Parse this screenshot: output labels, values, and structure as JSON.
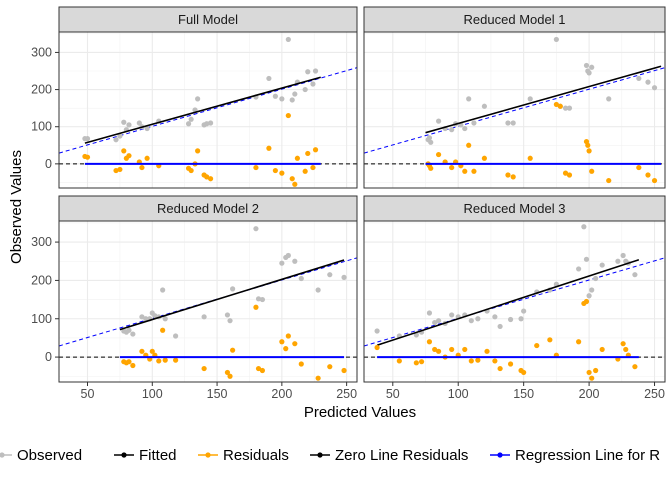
{
  "chart_data": {
    "type": "scatter",
    "xlabel": "Predicted Values",
    "ylabel": "Observed Values",
    "xlim": [
      28,
      258
    ],
    "ylim": [
      -65,
      355
    ],
    "x_ticks": [
      50,
      100,
      150,
      200,
      250
    ],
    "y_ticks": [
      0,
      100,
      200,
      300
    ],
    "grid": true,
    "legend_position": "bottom",
    "colors": {
      "observed": "#bebebe",
      "fitted": "#000000",
      "residuals": "#ffa500",
      "zero_line_residuals": "#000000",
      "regression_line_residuals": "#0000ff",
      "reference_line": "#0000ff",
      "strip_fill": "#d9d9d9",
      "grid": "#ebebeb"
    },
    "legend": [
      {
        "key": "observed",
        "label": "Observed"
      },
      {
        "key": "fitted",
        "label": "Fitted"
      },
      {
        "key": "residuals",
        "label": "Residuals"
      },
      {
        "key": "zero_line_residuals",
        "label": "Zero Line Residuals"
      },
      {
        "key": "regression_line_residuals",
        "label": "Regression Line for R"
      }
    ],
    "panels": [
      {
        "title": "Full Model",
        "reference_line": [
          [
            28,
            29
          ],
          [
            258,
            259
          ]
        ],
        "fitted_range": [
          48,
          230
        ],
        "residual_line_range": [
          48,
          230
        ],
        "observed": [
          [
            48,
            68
          ],
          [
            50,
            68
          ],
          [
            72,
            65
          ],
          [
            75,
            75
          ],
          [
            78,
            112
          ],
          [
            80,
            92
          ],
          [
            82,
            105
          ],
          [
            90,
            110
          ],
          [
            92,
            100
          ],
          [
            96,
            95
          ],
          [
            105,
            115
          ],
          [
            128,
            108
          ],
          [
            130,
            120
          ],
          [
            133,
            145
          ],
          [
            135,
            175
          ],
          [
            140,
            105
          ],
          [
            142,
            108
          ],
          [
            145,
            110
          ],
          [
            180,
            180
          ],
          [
            190,
            230
          ],
          [
            195,
            182
          ],
          [
            200,
            175
          ],
          [
            205,
            335
          ],
          [
            208,
            172
          ],
          [
            210,
            188
          ],
          [
            212,
            220
          ],
          [
            218,
            200
          ],
          [
            220,
            248
          ],
          [
            224,
            215
          ],
          [
            226,
            250
          ]
        ],
        "residuals": [
          [
            48,
            20
          ],
          [
            50,
            18
          ],
          [
            72,
            -18
          ],
          [
            75,
            -15
          ],
          [
            78,
            35
          ],
          [
            80,
            15
          ],
          [
            82,
            22
          ],
          [
            90,
            5
          ],
          [
            92,
            -10
          ],
          [
            96,
            15
          ],
          [
            105,
            -5
          ],
          [
            128,
            -12
          ],
          [
            130,
            -18
          ],
          [
            133,
            0
          ],
          [
            135,
            35
          ],
          [
            140,
            -30
          ],
          [
            142,
            -35
          ],
          [
            145,
            -40
          ],
          [
            180,
            -10
          ],
          [
            190,
            42
          ],
          [
            195,
            -18
          ],
          [
            200,
            -25
          ],
          [
            205,
            130
          ],
          [
            208,
            -40
          ],
          [
            210,
            -55
          ],
          [
            212,
            15
          ],
          [
            218,
            -20
          ],
          [
            220,
            28
          ],
          [
            224,
            -10
          ],
          [
            226,
            38
          ]
        ]
      },
      {
        "title": "Reduced Model 1",
        "reference_line": [
          [
            28,
            29
          ],
          [
            258,
            259
          ]
        ],
        "fitted_range": [
          75,
          255
        ],
        "residual_line_range": [
          75,
          255
        ],
        "observed": [
          [
            77,
            65
          ],
          [
            78,
            70
          ],
          [
            79,
            58
          ],
          [
            85,
            115
          ],
          [
            90,
            95
          ],
          [
            95,
            92
          ],
          [
            98,
            108
          ],
          [
            102,
            105
          ],
          [
            105,
            95
          ],
          [
            108,
            175
          ],
          [
            112,
            110
          ],
          [
            120,
            155
          ],
          [
            138,
            110
          ],
          [
            142,
            110
          ],
          [
            155,
            175
          ],
          [
            175,
            335
          ],
          [
            178,
            155
          ],
          [
            182,
            150
          ],
          [
            185,
            150
          ],
          [
            198,
            265
          ],
          [
            199,
            250
          ],
          [
            200,
            245
          ],
          [
            202,
            260
          ],
          [
            215,
            175
          ],
          [
            238,
            230
          ],
          [
            245,
            220
          ],
          [
            250,
            205
          ]
        ],
        "residuals": [
          [
            77,
            0
          ],
          [
            78,
            -5
          ],
          [
            79,
            -12
          ],
          [
            85,
            25
          ],
          [
            90,
            5
          ],
          [
            95,
            -10
          ],
          [
            98,
            5
          ],
          [
            102,
            -5
          ],
          [
            105,
            -20
          ],
          [
            108,
            50
          ],
          [
            112,
            -20
          ],
          [
            120,
            15
          ],
          [
            138,
            -30
          ],
          [
            142,
            -35
          ],
          [
            155,
            15
          ],
          [
            175,
            160
          ],
          [
            178,
            155
          ],
          [
            182,
            -25
          ],
          [
            185,
            -30
          ],
          [
            198,
            60
          ],
          [
            199,
            50
          ],
          [
            200,
            35
          ],
          [
            202,
            -20
          ],
          [
            215,
            -45
          ],
          [
            238,
            -10
          ],
          [
            245,
            -30
          ],
          [
            250,
            -45
          ]
        ]
      },
      {
        "title": "Reduced Model 2",
        "reference_line": [
          [
            28,
            29
          ],
          [
            258,
            259
          ]
        ],
        "fitted_range": [
          75,
          248
        ],
        "residual_line_range": [
          75,
          248
        ],
        "observed": [
          [
            78,
            68
          ],
          [
            80,
            65
          ],
          [
            82,
            70
          ],
          [
            85,
            60
          ],
          [
            92,
            105
          ],
          [
            95,
            100
          ],
          [
            98,
            100
          ],
          [
            100,
            115
          ],
          [
            102,
            108
          ],
          [
            105,
            105
          ],
          [
            108,
            175
          ],
          [
            110,
            100
          ],
          [
            118,
            55
          ],
          [
            140,
            105
          ],
          [
            158,
            110
          ],
          [
            160,
            95
          ],
          [
            162,
            178
          ],
          [
            180,
            335
          ],
          [
            182,
            152
          ],
          [
            185,
            150
          ],
          [
            200,
            245
          ],
          [
            203,
            260
          ],
          [
            205,
            265
          ],
          [
            210,
            250
          ],
          [
            215,
            205
          ],
          [
            228,
            175
          ],
          [
            237,
            215
          ],
          [
            248,
            208
          ]
        ],
        "residuals": [
          [
            78,
            -12
          ],
          [
            80,
            -15
          ],
          [
            82,
            -12
          ],
          [
            85,
            -22
          ],
          [
            92,
            15
          ],
          [
            95,
            5
          ],
          [
            98,
            -5
          ],
          [
            100,
            15
          ],
          [
            102,
            5
          ],
          [
            105,
            -10
          ],
          [
            108,
            70
          ],
          [
            110,
            -8
          ],
          [
            118,
            -8
          ],
          [
            140,
            -30
          ],
          [
            158,
            -40
          ],
          [
            160,
            -50
          ],
          [
            162,
            18
          ],
          [
            180,
            130
          ],
          [
            182,
            -30
          ],
          [
            185,
            -35
          ],
          [
            200,
            40
          ],
          [
            203,
            22
          ],
          [
            205,
            55
          ],
          [
            210,
            35
          ],
          [
            215,
            -18
          ],
          [
            228,
            -55
          ],
          [
            237,
            -25
          ],
          [
            248,
            -35
          ]
        ]
      },
      {
        "title": "Reduced Model 3",
        "reference_line": [
          [
            28,
            29
          ],
          [
            258,
            259
          ]
        ],
        "fitted_range": [
          38,
          238
        ],
        "residual_line_range": [
          38,
          238
        ],
        "observed": [
          [
            38,
            68
          ],
          [
            55,
            55
          ],
          [
            68,
            58
          ],
          [
            72,
            65
          ],
          [
            78,
            115
          ],
          [
            82,
            90
          ],
          [
            85,
            95
          ],
          [
            90,
            88
          ],
          [
            95,
            110
          ],
          [
            100,
            105
          ],
          [
            105,
            110
          ],
          [
            110,
            95
          ],
          [
            115,
            100
          ],
          [
            122,
            120
          ],
          [
            128,
            105
          ],
          [
            132,
            80
          ],
          [
            140,
            98
          ],
          [
            148,
            100
          ],
          [
            150,
            120
          ],
          [
            160,
            170
          ],
          [
            170,
            175
          ],
          [
            175,
            190
          ],
          [
            192,
            230
          ],
          [
            196,
            340
          ],
          [
            198,
            255
          ],
          [
            200,
            160
          ],
          [
            202,
            175
          ],
          [
            205,
            205
          ],
          [
            210,
            240
          ],
          [
            222,
            250
          ],
          [
            226,
            265
          ],
          [
            228,
            250
          ],
          [
            230,
            245
          ],
          [
            235,
            215
          ]
        ],
        "residuals": [
          [
            38,
            25
          ],
          [
            55,
            -10
          ],
          [
            68,
            -15
          ],
          [
            72,
            -12
          ],
          [
            78,
            40
          ],
          [
            82,
            20
          ],
          [
            85,
            15
          ],
          [
            90,
            0
          ],
          [
            95,
            20
          ],
          [
            100,
            5
          ],
          [
            105,
            20
          ],
          [
            110,
            -10
          ],
          [
            115,
            -8
          ],
          [
            122,
            15
          ],
          [
            128,
            -10
          ],
          [
            132,
            -30
          ],
          [
            140,
            -18
          ],
          [
            148,
            -35
          ],
          [
            150,
            -40
          ],
          [
            160,
            30
          ],
          [
            170,
            45
          ],
          [
            175,
            5
          ],
          [
            192,
            40
          ],
          [
            196,
            140
          ],
          [
            198,
            145
          ],
          [
            200,
            -40
          ],
          [
            202,
            -55
          ],
          [
            205,
            -35
          ],
          [
            210,
            20
          ],
          [
            222,
            -5
          ],
          [
            226,
            35
          ],
          [
            228,
            20
          ],
          [
            230,
            5
          ],
          [
            235,
            -25
          ]
        ]
      }
    ]
  }
}
